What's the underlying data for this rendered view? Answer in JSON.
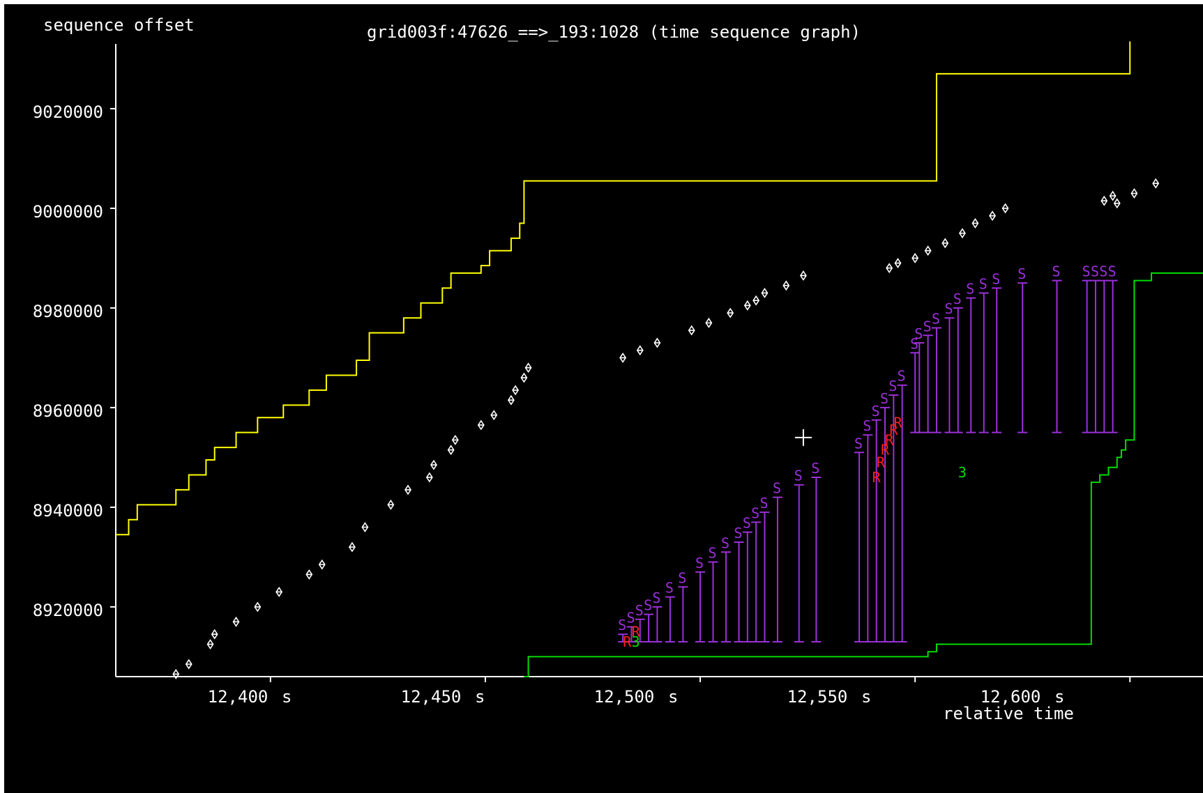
{
  "chart_data": {
    "type": "scatter",
    "title": "grid003f:47626_==>_193:1028 (time sequence graph)",
    "ylabel": "sequence offset",
    "xlabel": "relative time",
    "x_unit": "s",
    "xlim": [
      12.364,
      12.617
    ],
    "ylim": [
      8906000,
      9033000
    ],
    "x_ticks": [
      12.4,
      12.45,
      12.5,
      12.55,
      12.6
    ],
    "x_tick_labels": [
      "12,400",
      "12,450",
      "12,500",
      "12,550",
      "12,600"
    ],
    "y_ticks": [
      8920000,
      8940000,
      8960000,
      8980000,
      9000000,
      9020000
    ],
    "y_tick_labels": [
      "8920000",
      "8940000",
      "8960000",
      "8980000",
      "9000000",
      "9020000"
    ],
    "grid": false,
    "colors": {
      "background": "#000000",
      "axis": "#ffffff",
      "window_line": "#ffff00",
      "ack_line": "#00dd00",
      "segments": "#ffffff",
      "sack": "#9b30d9",
      "retransmit": "#ff2020",
      "dupack": "#00dd00"
    },
    "series": [
      {
        "role": "window",
        "style": "yellow-step",
        "x": [
          12.364,
          12.367,
          12.369,
          12.378,
          12.381,
          12.385,
          12.387,
          12.392,
          12.397,
          12.403,
          12.409,
          12.413,
          12.42,
          12.423,
          12.431,
          12.435,
          12.44,
          12.442,
          12.449,
          12.451,
          12.456,
          12.458,
          12.459,
          12.555,
          12.6
        ],
        "y": [
          8934500,
          8937500,
          8940500,
          8943500,
          8946500,
          8949500,
          8952000,
          8955000,
          8958000,
          8960500,
          8963500,
          8966500,
          8969500,
          8975000,
          8978000,
          8981000,
          8984000,
          8987000,
          8988500,
          8991500,
          8994000,
          8997000,
          9005500,
          9027000,
          9033500
        ]
      },
      {
        "role": "ack",
        "style": "green-step",
        "x": [
          12.459,
          12.46,
          12.553,
          12.555,
          12.591,
          12.593,
          12.595,
          12.597,
          12.598,
          12.599,
          12.601,
          12.605,
          12.617
        ],
        "y": [
          8906000,
          8910000,
          8911000,
          8912500,
          8945000,
          8946500,
          8948000,
          8950000,
          8951500,
          8953500,
          8985500,
          8987000,
          8987000
        ]
      },
      {
        "role": "segments",
        "style": "white-diamond",
        "x": [
          12.378,
          12.381,
          12.386,
          12.387,
          12.392,
          12.397,
          12.402,
          12.409,
          12.412,
          12.419,
          12.422,
          12.428,
          12.432,
          12.437,
          12.438,
          12.442,
          12.443,
          12.449,
          12.452,
          12.456,
          12.457,
          12.459,
          12.46,
          12.482,
          12.486,
          12.49,
          12.498,
          12.502,
          12.507,
          12.511,
          12.513,
          12.515,
          12.52,
          12.524,
          12.544,
          12.546,
          12.55,
          12.553,
          12.557,
          12.561,
          12.564,
          12.568,
          12.571,
          12.594,
          12.596,
          12.597,
          12.601,
          12.606
        ],
        "y": [
          8906500,
          8908500,
          8912500,
          8914500,
          8917000,
          8920000,
          8923000,
          8926500,
          8928500,
          8932000,
          8936000,
          8940500,
          8943500,
          8946000,
          8948500,
          8951500,
          8953500,
          8956500,
          8958500,
          8961500,
          8963500,
          8966000,
          8968000,
          8970000,
          8971500,
          8973000,
          8975500,
          8977000,
          8979000,
          8980500,
          8981500,
          8983000,
          8984500,
          8986500,
          8988000,
          8989000,
          8990000,
          8991500,
          8993000,
          8995000,
          8997000,
          8998500,
          9000000,
          9001500,
          9002500,
          9001000,
          9003000,
          9005000
        ]
      },
      {
        "role": "sack",
        "style": "purple-bar",
        "label": "S",
        "x": [
          12.482,
          12.484,
          12.486,
          12.488,
          12.49,
          12.493,
          12.496,
          12.5,
          12.503,
          12.506,
          12.509,
          12.511,
          12.513,
          12.515,
          12.518,
          12.523,
          12.527,
          12.537,
          12.539,
          12.541,
          12.543,
          12.545,
          12.547,
          12.55,
          12.551,
          12.553,
          12.555,
          12.558,
          12.56,
          12.563,
          12.566,
          12.569,
          12.575,
          12.583,
          12.59,
          12.592,
          12.594,
          12.596
        ],
        "y_low": [
          8913000,
          8913000,
          8913000,
          8913000,
          8913000,
          8913000,
          8913000,
          8913000,
          8913000,
          8913000,
          8913000,
          8913000,
          8913000,
          8913000,
          8913000,
          8913000,
          8913000,
          8913000,
          8913000,
          8913000,
          8913000,
          8913000,
          8913000,
          8955000,
          8955000,
          8955000,
          8955000,
          8955000,
          8955000,
          8955000,
          8955000,
          8955000,
          8955000,
          8955000,
          8955000,
          8955000,
          8955000,
          8955000
        ],
        "y_high": [
          8914500,
          8916000,
          8917500,
          8918500,
          8920000,
          8922000,
          8924000,
          8927000,
          8929000,
          8931000,
          8933000,
          8935000,
          8937000,
          8939000,
          8942000,
          8944500,
          8946000,
          8951000,
          8954500,
          8957500,
          8960000,
          8962500,
          8964500,
          8971000,
          8973000,
          8974500,
          8976000,
          8978000,
          8980000,
          8982000,
          8983000,
          8984000,
          8985000,
          8985500,
          8985500,
          8985500,
          8985500,
          8985500
        ]
      },
      {
        "role": "retransmit",
        "style": "red-R",
        "label": "R",
        "x": [
          12.483,
          12.485,
          12.541,
          12.542,
          12.543,
          12.544,
          12.545,
          12.546
        ],
        "y": [
          8913000,
          8915000,
          8946000,
          8949000,
          8951500,
          8953500,
          8955500,
          8957000
        ]
      },
      {
        "role": "dupack",
        "style": "green-number",
        "x": [
          12.485,
          12.561
        ],
        "y": [
          8913000,
          8947000
        ],
        "labels": [
          "3",
          "3"
        ]
      }
    ]
  },
  "cursor": {
    "x": 12.524,
    "y": 8954000
  }
}
